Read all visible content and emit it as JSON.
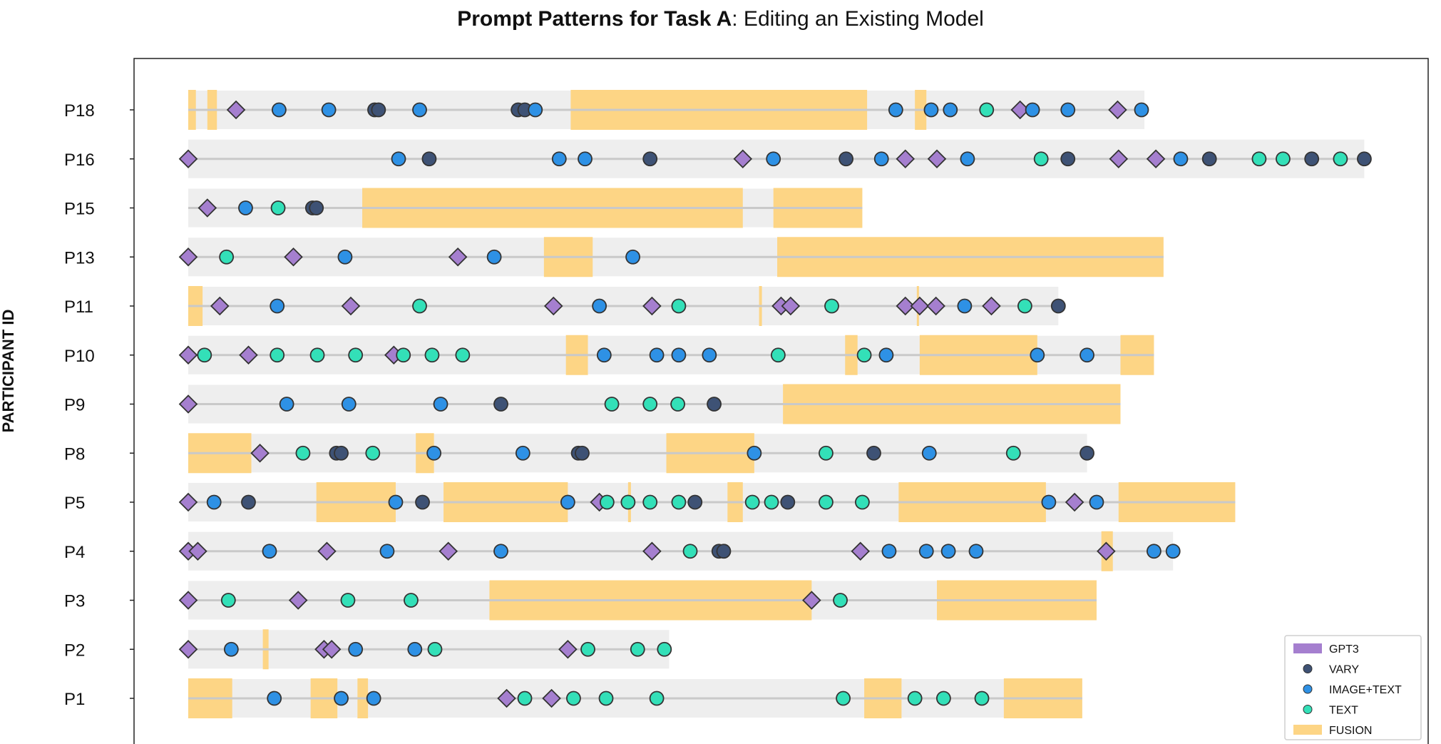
{
  "chart_data": {
    "type": "scatter",
    "title_bold": "Prompt Patterns for Task A",
    "title_rest": ": Editing an Existing Model",
    "ylabel": "PARTICIPANT ID",
    "xlabel": "",
    "grid": false,
    "legend_position": "bottom-right",
    "legend": [
      {
        "name": "GPT3",
        "marker": "rect",
        "color": "#a57fcf"
      },
      {
        "name": "VARY",
        "marker": "circle",
        "color": "#3e5275"
      },
      {
        "name": "IMAGE+TEXT",
        "marker": "circle",
        "color": "#2e91e5"
      },
      {
        "name": "TEXT",
        "marker": "circle",
        "color": "#33e0b8"
      },
      {
        "name": "FUSION",
        "marker": "rect",
        "color": "#fdd585"
      }
    ],
    "colors": {
      "gpt3": "#a57fcf",
      "vary": "#3e5275",
      "image_text": "#2e91e5",
      "text": "#33e0b8",
      "fusion": "#fdd585",
      "track": "#eeeeee",
      "line": "#c9c9c9"
    },
    "participants": [
      {
        "id": "P18",
        "end": 10.0,
        "fusion": [
          [
            0,
            0.08
          ],
          [
            0.2,
            0.3
          ],
          [
            4.0,
            7.1
          ],
          [
            7.6,
            7.72
          ]
        ],
        "events": [
          [
            "g",
            0.5
          ],
          [
            "i",
            0.95
          ],
          [
            "i",
            1.47
          ],
          [
            "v",
            1.95
          ],
          [
            "v",
            1.99
          ],
          [
            "i",
            2.42
          ],
          [
            "v",
            3.45
          ],
          [
            "v",
            3.52
          ],
          [
            "i",
            3.63
          ],
          [
            "i",
            7.4
          ],
          [
            "i",
            7.77
          ],
          [
            "i",
            7.97
          ],
          [
            "t",
            8.35
          ],
          [
            "g",
            8.7
          ],
          [
            "i",
            8.83
          ],
          [
            "i",
            9.2
          ],
          [
            "g",
            9.72
          ],
          [
            "i",
            9.97
          ]
        ]
      },
      {
        "id": "P16",
        "end": 12.3,
        "fusion": [],
        "events": [
          [
            "g",
            0
          ],
          [
            "i",
            2.2
          ],
          [
            "v",
            2.52
          ],
          [
            "i",
            3.88
          ],
          [
            "i",
            4.15
          ],
          [
            "v",
            4.83
          ],
          [
            "g",
            5.8
          ],
          [
            "i",
            6.12
          ],
          [
            "v",
            6.88
          ],
          [
            "i",
            7.25
          ],
          [
            "g",
            7.5
          ],
          [
            "g",
            7.83
          ],
          [
            "i",
            8.15
          ],
          [
            "t",
            8.92
          ],
          [
            "v",
            9.2
          ],
          [
            "g",
            9.73
          ],
          [
            "g",
            10.12
          ],
          [
            "i",
            10.38
          ],
          [
            "v",
            10.68
          ],
          [
            "t",
            11.2
          ],
          [
            "t",
            11.45
          ],
          [
            "v",
            11.75
          ],
          [
            "t",
            12.05
          ],
          [
            "v",
            12.3
          ]
        ]
      },
      {
        "id": "P15",
        "end": 7.05,
        "fusion": [
          [
            1.82,
            5.8
          ],
          [
            6.12,
            7.05
          ]
        ],
        "events": [
          [
            "g",
            0.2
          ],
          [
            "i",
            0.6
          ],
          [
            "t",
            0.94
          ],
          [
            "v",
            1.3
          ],
          [
            "v",
            1.34
          ]
        ]
      },
      {
        "id": "P13",
        "end": 10.2,
        "fusion": [
          [
            3.72,
            4.23
          ],
          [
            6.16,
            10.2
          ]
        ],
        "events": [
          [
            "g",
            0
          ],
          [
            "t",
            0.4
          ],
          [
            "g",
            1.1
          ],
          [
            "i",
            1.64
          ],
          [
            "g",
            2.82
          ],
          [
            "i",
            3.2
          ],
          [
            "i",
            4.65
          ]
        ]
      },
      {
        "id": "P11",
        "end": 9.1,
        "fusion": [
          [
            0,
            0.15
          ],
          [
            5.97,
            6.0
          ],
          [
            7.62,
            7.64
          ]
        ],
        "events": [
          [
            "g",
            0.33
          ],
          [
            "i",
            0.93
          ],
          [
            "g",
            1.7
          ],
          [
            "t",
            2.42
          ],
          [
            "g",
            3.82
          ],
          [
            "i",
            4.3
          ],
          [
            "g",
            4.85
          ],
          [
            "t",
            5.13
          ],
          [
            "g",
            6.2
          ],
          [
            "g",
            6.3
          ],
          [
            "t",
            6.73
          ],
          [
            "g",
            7.5
          ],
          [
            "g",
            7.65
          ],
          [
            "g",
            7.82
          ],
          [
            "i",
            8.12
          ],
          [
            "g",
            8.4
          ],
          [
            "t",
            8.75
          ],
          [
            "v",
            9.1
          ]
        ]
      },
      {
        "id": "P10",
        "end": 10.1,
        "fusion": [
          [
            3.95,
            4.18
          ],
          [
            6.87,
            7.0
          ],
          [
            7.65,
            8.88
          ],
          [
            9.75,
            10.1
          ]
        ],
        "events": [
          [
            "g",
            0
          ],
          [
            "t",
            0.17
          ],
          [
            "g",
            0.63
          ],
          [
            "t",
            0.93
          ],
          [
            "t",
            1.35
          ],
          [
            "t",
            1.75
          ],
          [
            "g",
            2.15
          ],
          [
            "t",
            2.25
          ],
          [
            "t",
            2.55
          ],
          [
            "t",
            2.87
          ],
          [
            "i",
            4.35
          ],
          [
            "i",
            4.9
          ],
          [
            "i",
            5.13
          ],
          [
            "i",
            5.45
          ],
          [
            "t",
            6.17
          ],
          [
            "t",
            7.07
          ],
          [
            "i",
            7.3
          ],
          [
            "i",
            8.88
          ],
          [
            "i",
            9.4
          ]
        ]
      },
      {
        "id": "P9",
        "end": 9.75,
        "fusion": [
          [
            6.22,
            9.75
          ]
        ],
        "events": [
          [
            "g",
            0
          ],
          [
            "i",
            1.03
          ],
          [
            "i",
            1.68
          ],
          [
            "i",
            2.64
          ],
          [
            "v",
            3.27
          ],
          [
            "t",
            4.43
          ],
          [
            "t",
            4.83
          ],
          [
            "t",
            5.12
          ],
          [
            "v",
            5.5
          ]
        ]
      },
      {
        "id": "P8",
        "end": 9.4,
        "fusion": [
          [
            0,
            0.66
          ],
          [
            2.38,
            2.57
          ],
          [
            5.0,
            5.92
          ]
        ],
        "events": [
          [
            "g",
            0.75
          ],
          [
            "t",
            1.2
          ],
          [
            "v",
            1.55
          ],
          [
            "v",
            1.6
          ],
          [
            "t",
            1.93
          ],
          [
            "i",
            2.57
          ],
          [
            "i",
            3.5
          ],
          [
            "v",
            4.08
          ],
          [
            "v",
            4.12
          ],
          [
            "i",
            5.92
          ],
          [
            "t",
            6.67
          ],
          [
            "v",
            7.17
          ],
          [
            "i",
            7.75
          ],
          [
            "t",
            8.63
          ],
          [
            "v",
            9.4
          ]
        ]
      },
      {
        "id": "P5",
        "end": 10.95,
        "fusion": [
          [
            1.34,
            2.17
          ],
          [
            2.67,
            3.97
          ],
          [
            4.6,
            4.63
          ],
          [
            5.64,
            5.8
          ],
          [
            7.43,
            8.97
          ],
          [
            9.73,
            10.95
          ]
        ],
        "events": [
          [
            "g",
            0
          ],
          [
            "i",
            0.27
          ],
          [
            "v",
            0.63
          ],
          [
            "i",
            2.17
          ],
          [
            "v",
            2.45
          ],
          [
            "i",
            3.97
          ],
          [
            "g",
            4.3
          ],
          [
            "t",
            4.38
          ],
          [
            "t",
            4.6
          ],
          [
            "t",
            4.83
          ],
          [
            "t",
            5.13
          ],
          [
            "v",
            5.3
          ],
          [
            "t",
            5.9
          ],
          [
            "t",
            6.1
          ],
          [
            "v",
            6.27
          ],
          [
            "t",
            6.67
          ],
          [
            "t",
            7.05
          ],
          [
            "i",
            9.0
          ],
          [
            "g",
            9.27
          ],
          [
            "i",
            9.5
          ]
        ]
      },
      {
        "id": "P4",
        "end": 10.3,
        "fusion": [
          [
            9.55,
            9.67
          ]
        ],
        "events": [
          [
            "g",
            0
          ],
          [
            "g",
            0.1
          ],
          [
            "i",
            0.85
          ],
          [
            "g",
            1.45
          ],
          [
            "i",
            2.08
          ],
          [
            "g",
            2.72
          ],
          [
            "i",
            3.27
          ],
          [
            "g",
            4.85
          ],
          [
            "t",
            5.25
          ],
          [
            "v",
            5.55
          ],
          [
            "v",
            5.6
          ],
          [
            "g",
            7.03
          ],
          [
            "i",
            7.33
          ],
          [
            "i",
            7.72
          ],
          [
            "i",
            7.95
          ],
          [
            "i",
            8.24
          ],
          [
            "g",
            9.6
          ],
          [
            "i",
            10.1
          ],
          [
            "i",
            10.3
          ]
        ]
      },
      {
        "id": "P3",
        "end": 9.5,
        "fusion": [
          [
            3.15,
            6.52
          ],
          [
            7.83,
            9.5
          ]
        ],
        "events": [
          [
            "g",
            0
          ],
          [
            "t",
            0.42
          ],
          [
            "g",
            1.15
          ],
          [
            "t",
            1.67
          ],
          [
            "t",
            2.33
          ],
          [
            "g",
            6.52
          ],
          [
            "t",
            6.82
          ]
        ]
      },
      {
        "id": "P2",
        "end": 5.03,
        "fusion": [
          [
            0.78,
            0.84
          ]
        ],
        "events": [
          [
            "g",
            0
          ],
          [
            "i",
            0.45
          ],
          [
            "g",
            1.42
          ],
          [
            "g",
            1.5
          ],
          [
            "i",
            1.75
          ],
          [
            "i",
            2.37
          ],
          [
            "t",
            2.58
          ],
          [
            "g",
            3.97
          ],
          [
            "t",
            4.18
          ],
          [
            "t",
            4.7
          ],
          [
            "t",
            4.98
          ]
        ]
      },
      {
        "id": "P1",
        "end": 9.35,
        "fusion": [
          [
            0,
            0.46
          ],
          [
            1.28,
            1.56
          ],
          [
            1.77,
            1.88
          ],
          [
            7.07,
            7.46
          ],
          [
            8.53,
            9.35
          ]
        ],
        "events": [
          [
            "i",
            0.9
          ],
          [
            "i",
            1.6
          ],
          [
            "i",
            1.94
          ],
          [
            "g",
            3.33
          ],
          [
            "t",
            3.52
          ],
          [
            "g",
            3.8
          ],
          [
            "t",
            4.03
          ],
          [
            "t",
            4.37
          ],
          [
            "t",
            4.9
          ],
          [
            "t",
            6.85
          ],
          [
            "t",
            7.6
          ],
          [
            "t",
            7.9
          ],
          [
            "t",
            8.3
          ]
        ]
      }
    ]
  }
}
